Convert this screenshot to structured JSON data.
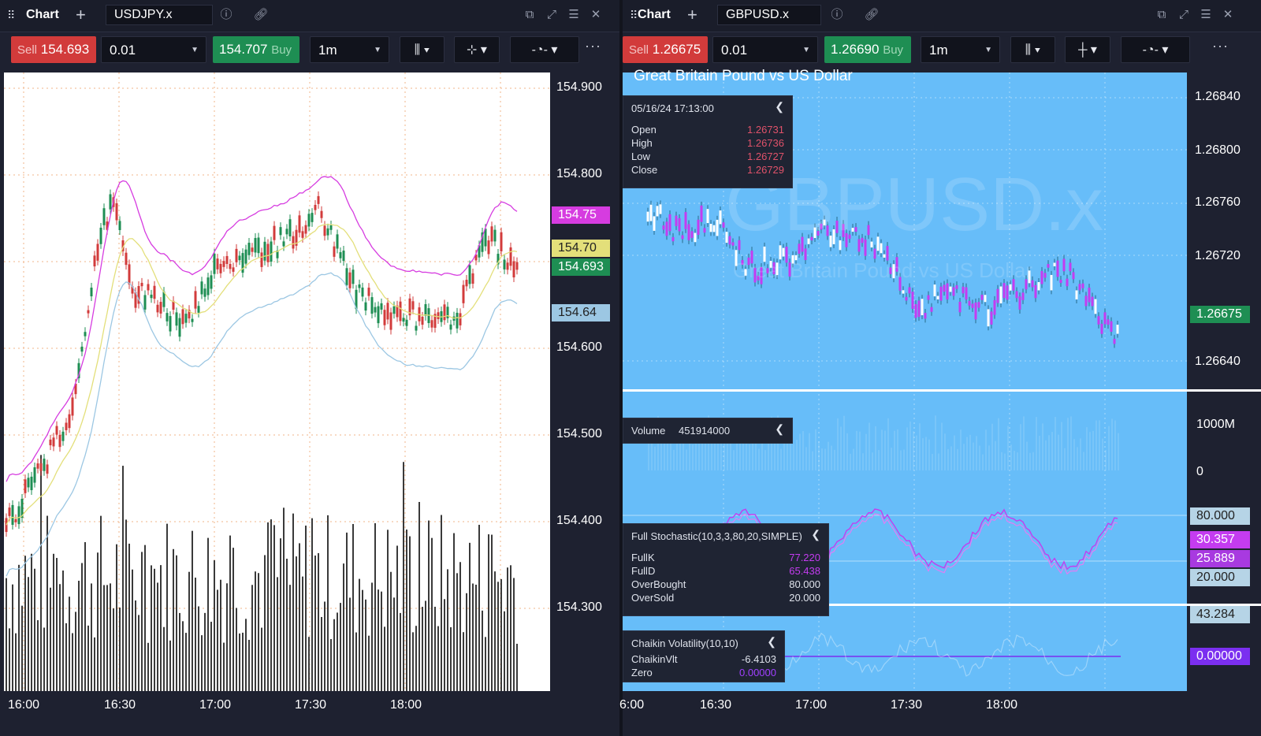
{
  "colors": {
    "sell": "#d23b3b",
    "buy": "#1e8e53",
    "bg": "#1e2130",
    "left_plot_bg": "#ffffff",
    "right_plot_bg": "#67bdf9",
    "upper_band": "#d63ce0",
    "middle_band": "#e3df7a",
    "lower_band": "#9cc7e3",
    "candle_up": "#1e8e53",
    "candle_down": "#d23b3b",
    "volume": "#3a3a3a",
    "gbp_candles": "#c43cf0",
    "stoch": "#c43cf0",
    "chaikin_zero": "#7b2ff0"
  },
  "left": {
    "title": "Chart",
    "symbol": "USDJPY.x",
    "sell_label": "Sell",
    "sell_price": "154.693",
    "quantity": "0.01",
    "buy_price": "154.707",
    "buy_label": "Buy",
    "interval": "1m",
    "more": "···",
    "yticks": [
      "154.900",
      "154.800",
      "154.600",
      "154.500",
      "154.400",
      "154.300"
    ],
    "badges": {
      "upper": "154.75",
      "middle": "154.70",
      "last": "154.693",
      "lower": "154.64"
    },
    "xticks": [
      "16:00",
      "16:30",
      "17:00",
      "17:30",
      "18:00"
    ]
  },
  "right": {
    "title": "Chart",
    "symbol": "GBPUSD.x",
    "sell_label": "Sell",
    "sell_price": "1.26675",
    "quantity": "0.01",
    "buy_price": "1.26690",
    "buy_label": "Buy",
    "interval": "1m",
    "more": "···",
    "chart_title": "Great Britain Pound vs US Dollar",
    "watermark_big": "GBPUSD.x",
    "watermark_small": "Great Britain Pound vs US Dollar",
    "yticks": [
      "1.26840",
      "1.26800",
      "1.26760",
      "1.26720",
      "1.26640"
    ],
    "last_badge": "1.26675",
    "ohlc": {
      "datetime": "05/16/24 17:13:00",
      "rows": [
        {
          "k": "Open",
          "v": "1.26731"
        },
        {
          "k": "High",
          "v": "1.26736"
        },
        {
          "k": "Low",
          "v": "1.26727"
        },
        {
          "k": "Close",
          "v": "1.26729"
        }
      ]
    },
    "volume": {
      "label": "Volume",
      "value": "451914000",
      "axis": [
        "1000M",
        "0"
      ]
    },
    "stoch": {
      "title": "Full Stochastic(10,3,3,80,20,SIMPLE)",
      "rows": [
        {
          "k": "FullK",
          "v": "77.220"
        },
        {
          "k": "FullD",
          "v": "65.438"
        },
        {
          "k": "OverBought",
          "v": "80.000"
        },
        {
          "k": "OverSold",
          "v": "20.000"
        }
      ],
      "badges": [
        "80.000",
        "30.357",
        "25.889",
        "20.000"
      ]
    },
    "chaikin": {
      "title": "Chaikin Volatility(10,10)",
      "rows": [
        {
          "k": "ChaikinVlt",
          "v": "-6.4103"
        },
        {
          "k": "Zero",
          "v": "0.00000"
        }
      ],
      "badges": [
        "43.284",
        "0.00000"
      ]
    },
    "xticks": [
      "6:00",
      "16:30",
      "17:00",
      "17:30",
      "18:00"
    ]
  }
}
